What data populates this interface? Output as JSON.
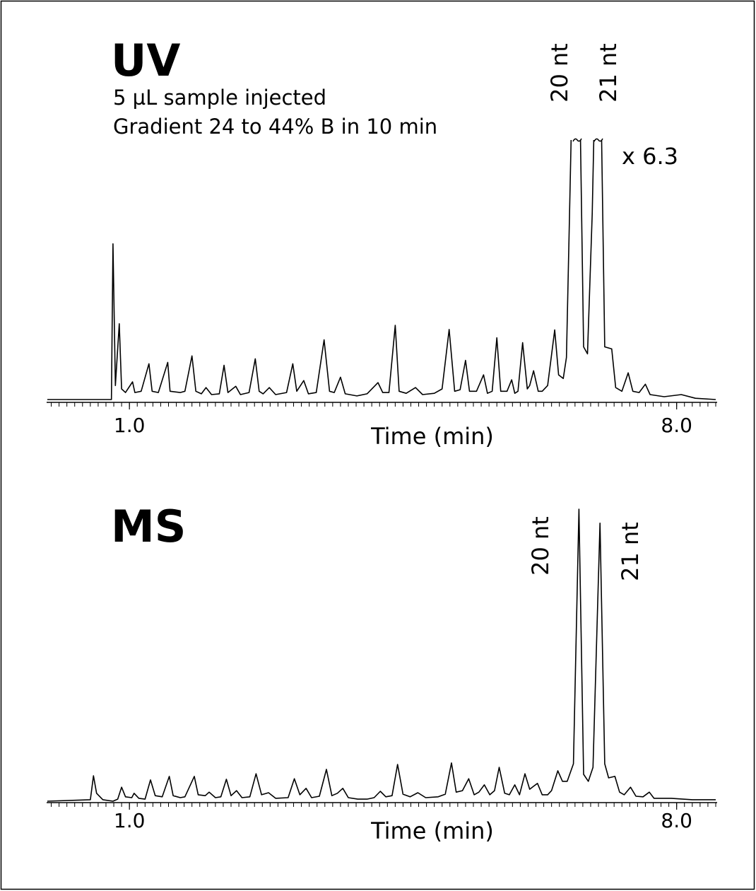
{
  "chart_data": [
    {
      "type": "line",
      "title": "UV",
      "xlabel": "Time (min)",
      "color": "#000000",
      "annotations": [
        "5 µL sample injected",
        "Gradient 24 to 44% B in 10 min",
        "20 nt",
        "21 nt",
        "x 6.3"
      ],
      "xlim": [
        -0.05,
        8.5
      ],
      "ylim": [
        0,
        100
      ],
      "xticks": [
        {
          "value": 1,
          "label": "1.0"
        },
        {
          "value": 8,
          "label": "8.0"
        }
      ],
      "minor_tick_interval": 0.1,
      "x": [
        -0.05,
        0.77,
        0.79,
        0.82,
        0.87,
        0.9,
        0.95,
        1.04,
        1.07,
        1.15,
        1.25,
        1.29,
        1.37,
        1.49,
        1.52,
        1.65,
        1.71,
        1.8,
        1.85,
        1.92,
        1.98,
        2.05,
        2.15,
        2.21,
        2.26,
        2.36,
        2.42,
        2.53,
        2.61,
        2.66,
        2.71,
        2.79,
        2.87,
        3.01,
        3.09,
        3.14,
        3.23,
        3.29,
        3.39,
        3.49,
        3.56,
        3.62,
        3.7,
        3.76,
        3.91,
        4.04,
        4.18,
        4.24,
        4.32,
        4.4,
        4.45,
        4.54,
        4.66,
        4.75,
        4.9,
        5.0,
        5.09,
        5.16,
        5.23,
        5.3,
        5.35,
        5.44,
        5.53,
        5.58,
        5.64,
        5.7,
        5.75,
        5.83,
        5.89,
        5.93,
        5.97,
        6.03,
        6.09,
        6.12,
        6.17,
        6.23,
        6.28,
        6.35,
        6.44,
        6.49,
        6.55,
        6.59,
        6.63,
        6.65,
        6.71,
        6.77,
        6.81,
        6.86,
        6.92,
        6.94,
        6.99,
        7.04,
        7.08,
        7.17,
        7.22,
        7.3,
        7.38,
        7.44,
        7.52,
        7.6,
        7.66,
        7.84,
        8.06,
        8.24,
        8.5
      ],
      "values": [
        0,
        0,
        60,
        5.4,
        29.2,
        4.1,
        2.7,
        6.8,
        2.7,
        3.2,
        13.8,
        3.2,
        2.7,
        14.3,
        3.2,
        2.7,
        3.2,
        16.8,
        3.2,
        2.2,
        4.6,
        1.9,
        2.2,
        13.2,
        2.7,
        5.1,
        1.9,
        2.7,
        15.7,
        3.2,
        2.2,
        4.6,
        1.9,
        2.7,
        13.8,
        3.2,
        7.3,
        2.2,
        2.7,
        23,
        3.2,
        2.7,
        8.6,
        2.2,
        1.4,
        2.2,
        6.5,
        2.7,
        2.7,
        28.6,
        3.2,
        2.4,
        4.6,
        1.9,
        2.4,
        4.1,
        27,
        3.2,
        3.8,
        15.1,
        3.2,
        3.2,
        9.5,
        2.4,
        3.2,
        23.8,
        3.2,
        3.2,
        7.6,
        2.4,
        3.2,
        21.9,
        4.1,
        5.4,
        11.1,
        3.2,
        3.2,
        5.4,
        26.8,
        9.5,
        8.1,
        16.2,
        71.6,
        100,
        null,
        100,
        20.3,
        17.6,
        71.6,
        100,
        null,
        100,
        20.3,
        19.5,
        4.6,
        3.2,
        10.3,
        3.2,
        2.7,
        5.9,
        1.9,
        1.1,
        1.9,
        0.5,
        0
      ]
    },
    {
      "type": "line",
      "title": "MS",
      "xlabel": "Time (min)",
      "color": "#000000",
      "annotations": [
        "20 nt",
        "21 nt"
      ],
      "xlim": [
        -0.05,
        8.5
      ],
      "ylim": [
        0,
        100
      ],
      "xticks": [
        {
          "value": 1,
          "label": "1.0"
        },
        {
          "value": 8,
          "label": "8.0"
        }
      ],
      "minor_tick_interval": 0.1,
      "x": [
        -0.05,
        0.5,
        0.54,
        0.58,
        0.66,
        0.79,
        0.85,
        0.9,
        0.95,
        1.03,
        1.06,
        1.12,
        1.2,
        1.27,
        1.33,
        1.42,
        1.51,
        1.56,
        1.65,
        1.71,
        1.83,
        1.88,
        1.97,
        2.02,
        2.1,
        2.17,
        2.24,
        2.3,
        2.37,
        2.44,
        2.54,
        2.62,
        2.69,
        2.78,
        2.87,
        3.03,
        3.11,
        3.18,
        3.26,
        3.33,
        3.43,
        3.52,
        3.59,
        3.66,
        3.73,
        3.8,
        3.92,
        4.04,
        4.13,
        4.21,
        4.28,
        4.36,
        4.43,
        4.5,
        4.59,
        4.69,
        4.79,
        4.95,
        5.04,
        5.12,
        5.18,
        5.26,
        5.34,
        5.41,
        5.47,
        5.54,
        5.61,
        5.67,
        5.73,
        5.8,
        5.86,
        5.93,
        5.99,
        6.06,
        6.12,
        6.17,
        6.22,
        6.28,
        6.35,
        6.4,
        6.48,
        6.54,
        6.6,
        6.68,
        6.75,
        6.81,
        6.87,
        6.93,
        7.02,
        7.08,
        7.13,
        7.21,
        7.27,
        7.33,
        7.41,
        7.48,
        7.57,
        7.65,
        7.71,
        7.93,
        8.2,
        8.5
      ],
      "values": [
        0,
        0.5,
        8.7,
        2.7,
        0.5,
        0,
        0.7,
        4.8,
        1.5,
        1.2,
        2.7,
        1.0,
        0.7,
        7.3,
        1.9,
        1.5,
        8.5,
        1.9,
        1.2,
        1.5,
        8.5,
        2.2,
        1.9,
        3.1,
        1.2,
        1.5,
        7.5,
        1.9,
        3.6,
        1.2,
        1.5,
        9.4,
        2.2,
        2.9,
        1.0,
        1.2,
        7.7,
        2.2,
        4.4,
        1.2,
        1.7,
        10.9,
        1.9,
        2.7,
        4.4,
        1.2,
        0.7,
        0.7,
        1.2,
        3.4,
        1.5,
        1.9,
        12.6,
        2.4,
        1.5,
        2.9,
        1.2,
        1.5,
        2.4,
        13.1,
        3.1,
        3.6,
        7.7,
        2.2,
        3.1,
        5.6,
        2.2,
        3.6,
        11.6,
        2.7,
        2.2,
        5.6,
        2.2,
        9.4,
        4.1,
        5.1,
        6.1,
        2.2,
        2.2,
        3.6,
        10.4,
        6.8,
        6.8,
        12.8,
        100,
        9.2,
        6.8,
        11.6,
        95.2,
        12.8,
        8.0,
        8.5,
        3.1,
        2.2,
        4.8,
        1.7,
        1.5,
        3.1,
        1.0,
        1.0,
        0.5,
        0.5
      ]
    }
  ]
}
